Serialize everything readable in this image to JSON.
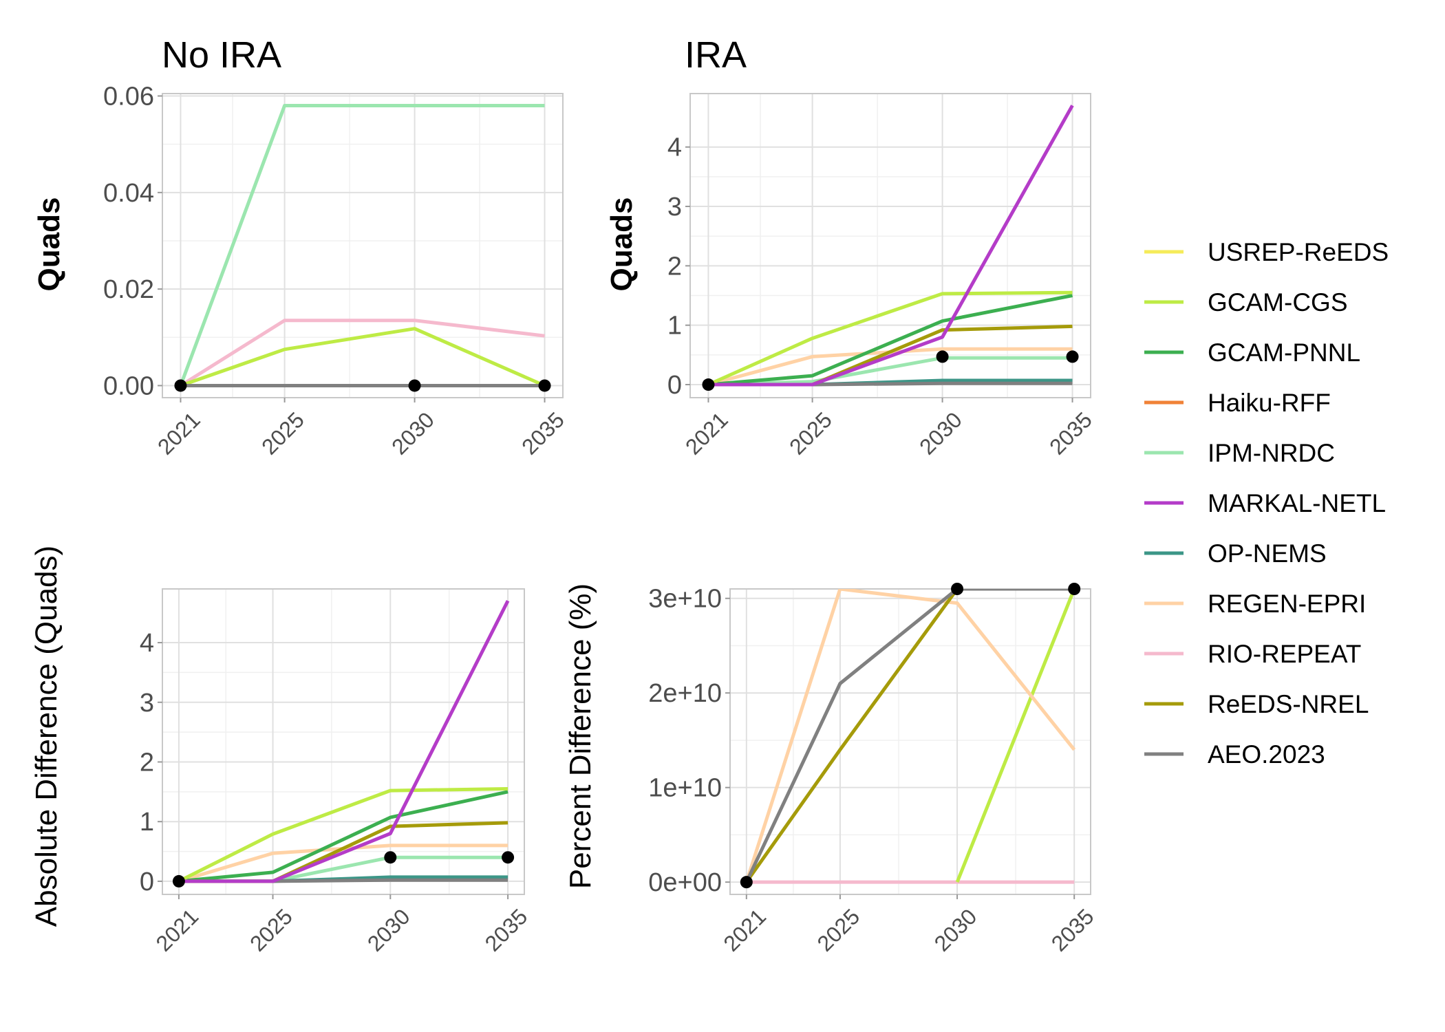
{
  "series_styles": [
    {
      "name": "USREP-ReEDS",
      "color": "#F5EB5A"
    },
    {
      "name": "GCAM-CGS",
      "color": "#BEEB45"
    },
    {
      "name": "GCAM-PNNL",
      "color": "#3CAF50"
    },
    {
      "name": "Haiku-RFF",
      "color": "#F08237"
    },
    {
      "name": "IPM-NRDC",
      "color": "#9BE6AF"
    },
    {
      "name": "MARKAL-NETL",
      "color": "#B43CC8"
    },
    {
      "name": "OP-NEMS",
      "color": "#3C9687"
    },
    {
      "name": "REGEN-EPRI",
      "color": "#FFD2A5"
    },
    {
      "name": "RIO-REPEAT",
      "color": "#F5B9CD"
    },
    {
      "name": "ReEDS-NREL",
      "color": "#A59B0A"
    },
    {
      "name": "AEO.2023",
      "color": "#808080"
    }
  ],
  "chart_data": [
    {
      "type": "line",
      "title": "No IRA",
      "xlabel": "",
      "ylabel": "Quads",
      "x": [
        2021,
        2025,
        2030,
        2035
      ],
      "xlim": [
        2020.3,
        2035.7
      ],
      "ylim": [
        -0.0025,
        0.0605
      ],
      "yticks": [
        0,
        0.02,
        0.04,
        0.06
      ],
      "ytick_labels": [
        "0.00",
        "0.02",
        "0.04",
        "0.06"
      ],
      "series": [
        {
          "name": "IPM-NRDC",
          "values": [
            0,
            0.058,
            0.058,
            0.058
          ]
        },
        {
          "name": "RIO-REPEAT",
          "values": [
            0,
            0.0135,
            0.0135,
            0.0103
          ]
        },
        {
          "name": "GCAM-CGS",
          "values": [
            0,
            0.0075,
            0.0118,
            0
          ]
        },
        {
          "name": "AEO.2023",
          "values": [
            0,
            0,
            0,
            0
          ]
        }
      ],
      "points": [
        {
          "x": 2021,
          "y": 0
        },
        {
          "x": 2030,
          "y": 0
        },
        {
          "x": 2035,
          "y": 0
        }
      ]
    },
    {
      "type": "line",
      "title": "IRA",
      "xlabel": "",
      "ylabel": "Quads",
      "x": [
        2021,
        2025,
        2030,
        2035
      ],
      "xlim": [
        2020.3,
        2035.7
      ],
      "ylim": [
        -0.22,
        4.9
      ],
      "yticks": [
        0,
        1,
        2,
        3,
        4
      ],
      "ytick_labels": [
        "0",
        "1",
        "2",
        "3",
        "4"
      ],
      "series": [
        {
          "name": "REGEN-EPRI",
          "values": [
            0,
            0.47,
            0.6,
            0.6
          ]
        },
        {
          "name": "IPM-NRDC",
          "values": [
            0,
            0.05,
            0.45,
            0.45
          ]
        },
        {
          "name": "OP-NEMS",
          "values": [
            0,
            0,
            0.07,
            0.07
          ]
        },
        {
          "name": "AEO.2023",
          "values": [
            0,
            0,
            0.02,
            0.02
          ]
        },
        {
          "name": "GCAM-PNNL",
          "values": [
            0,
            0.15,
            1.07,
            1.5
          ]
        },
        {
          "name": "ReEDS-NREL",
          "values": [
            0,
            0,
            0.92,
            0.98
          ]
        },
        {
          "name": "GCAM-CGS",
          "values": [
            0,
            0.78,
            1.53,
            1.55
          ]
        },
        {
          "name": "MARKAL-NETL",
          "values": [
            0,
            0,
            0.8,
            4.7
          ]
        }
      ],
      "points": [
        {
          "x": 2021,
          "y": 0
        },
        {
          "x": 2030,
          "y": 0.47
        },
        {
          "x": 2035,
          "y": 0.47
        }
      ]
    },
    {
      "type": "line",
      "title": "",
      "xlabel": "",
      "ylabel": "Absolute Difference (Quads)",
      "x": [
        2021,
        2025,
        2030,
        2035
      ],
      "xlim": [
        2020.3,
        2035.7
      ],
      "ylim": [
        -0.22,
        4.9
      ],
      "yticks": [
        0,
        1,
        2,
        3,
        4
      ],
      "ytick_labels": [
        "0",
        "1",
        "2",
        "3",
        "4"
      ],
      "series": [
        {
          "name": "REGEN-EPRI",
          "values": [
            0,
            0.47,
            0.6,
            0.6
          ]
        },
        {
          "name": "IPM-NRDC",
          "values": [
            0,
            0,
            0.4,
            0.4
          ]
        },
        {
          "name": "OP-NEMS",
          "values": [
            0,
            0,
            0.07,
            0.07
          ]
        },
        {
          "name": "AEO.2023",
          "values": [
            0,
            0,
            0.02,
            0.02
          ]
        },
        {
          "name": "GCAM-PNNL",
          "values": [
            0,
            0.15,
            1.07,
            1.5
          ]
        },
        {
          "name": "ReEDS-NREL",
          "values": [
            0,
            0,
            0.92,
            0.98
          ]
        },
        {
          "name": "GCAM-CGS",
          "values": [
            0,
            0.79,
            1.52,
            1.55
          ]
        },
        {
          "name": "MARKAL-NETL",
          "values": [
            0,
            0,
            0.8,
            4.7
          ]
        }
      ],
      "points": [
        {
          "x": 2021,
          "y": 0
        },
        {
          "x": 2030,
          "y": 0.4
        },
        {
          "x": 2035,
          "y": 0.4
        }
      ]
    },
    {
      "type": "line",
      "title": "",
      "xlabel": "",
      "ylabel": "Percent Difference (%)",
      "x": [
        2021,
        2025,
        2030,
        2035
      ],
      "xlim": [
        2020.3,
        2035.7
      ],
      "ylim": [
        -1300000000.0,
        31000000000.0
      ],
      "yticks": [
        0,
        10000000000.0,
        20000000000.0,
        30000000000.0
      ],
      "ytick_labels": [
        "0e+00",
        "1e+10",
        "2e+10",
        "3e+10"
      ],
      "series": [
        {
          "name": "RIO-REPEAT",
          "values": [
            0,
            0,
            0,
            0
          ]
        },
        {
          "name": "GCAM-CGS",
          "values": [
            null,
            null,
            0,
            31000000000.0
          ]
        },
        {
          "name": "REGEN-EPRI",
          "values": [
            0,
            31000000000.0,
            29500000000.0,
            14000000000.0
          ]
        },
        {
          "name": "ReEDS-NREL",
          "values": [
            0,
            14000000000.0,
            31000000000.0,
            31000000000.0
          ]
        },
        {
          "name": "AEO.2023",
          "values": [
            0,
            21000000000.0,
            31000000000.0,
            31000000000.0
          ],
          "clip": true
        }
      ],
      "points": [
        {
          "x": 2021,
          "y": 0
        },
        {
          "x": 2030,
          "y": 31000000000.0
        },
        {
          "x": 2035,
          "y": 31000000000.0
        }
      ]
    }
  ]
}
